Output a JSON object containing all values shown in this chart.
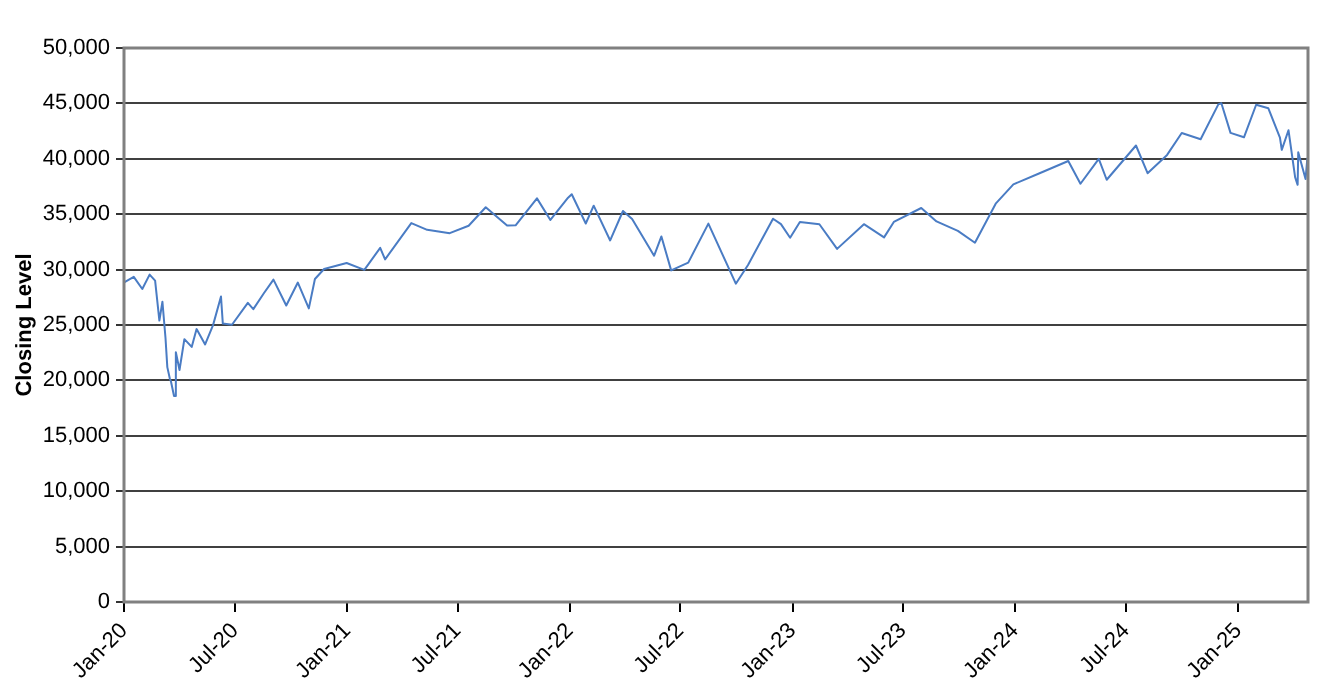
{
  "chart_data": {
    "type": "line",
    "ylabel": "Closing Level",
    "grid": "y",
    "x": [
      "2020-01-02",
      "2020-01-17",
      "2020-01-31",
      "2020-02-12",
      "2020-02-21",
      "2020-02-28",
      "2020-03-04",
      "2020-03-09",
      "2020-03-12",
      "2020-03-16",
      "2020-03-18",
      "2020-03-23",
      "2020-03-26",
      "2020-04-01",
      "2020-04-09",
      "2020-04-21",
      "2020-04-29",
      "2020-05-13",
      "2020-05-26",
      "2020-06-08",
      "2020-06-11",
      "2020-06-26",
      "2020-07-22",
      "2020-07-31",
      "2020-08-17",
      "2020-09-02",
      "2020-09-23",
      "2020-10-12",
      "2020-10-30",
      "2020-11-09",
      "2020-11-24",
      "2020-12-31",
      "2021-01-29",
      "2021-02-24",
      "2021-03-04",
      "2021-04-16",
      "2021-05-12",
      "2021-06-18",
      "2021-07-19",
      "2021-08-16",
      "2021-09-20",
      "2021-10-04",
      "2021-11-08",
      "2021-11-30",
      "2021-12-29",
      "2022-01-04",
      "2022-01-27",
      "2022-02-09",
      "2022-03-08",
      "2022-03-29",
      "2022-04-13",
      "2022-05-19",
      "2022-05-31",
      "2022-06-16",
      "2022-07-14",
      "2022-08-16",
      "2022-09-30",
      "2022-10-20",
      "2022-11-30",
      "2022-12-13",
      "2022-12-28",
      "2023-01-13",
      "2023-02-14",
      "2023-03-15",
      "2023-04-28",
      "2023-05-31",
      "2023-06-16",
      "2023-07-31",
      "2023-08-25",
      "2023-09-29",
      "2023-10-27",
      "2023-11-30",
      "2023-12-29",
      "2024-02-09",
      "2024-03-28",
      "2024-04-17",
      "2024-05-17",
      "2024-05-30",
      "2024-07-17",
      "2024-08-05",
      "2024-09-06",
      "2024-09-30",
      "2024-10-31",
      "2024-11-29",
      "2024-12-04",
      "2024-12-19",
      "2025-01-10",
      "2025-01-30",
      "2025-02-19",
      "2025-03-10",
      "2025-03-13",
      "2025-03-24",
      "2025-04-04",
      "2025-04-08",
      "2025-04-09",
      "2025-04-21",
      "2025-04-24"
    ],
    "series": [
      {
        "color": "#4a7cc4",
        "values": [
          28870,
          29350,
          28250,
          29550,
          29000,
          25400,
          27100,
          23850,
          21200,
          20190,
          19900,
          18590,
          22550,
          20940,
          23720,
          23020,
          24630,
          23250,
          24990,
          27570,
          25130,
          25020,
          27000,
          26430,
          27840,
          29100,
          26760,
          28830,
          26500,
          29150,
          30050,
          30600,
          29980,
          31960,
          30920,
          34200,
          33590,
          33290,
          33960,
          35630,
          33970,
          34000,
          36430,
          34480,
          36490,
          36800,
          34160,
          35770,
          32630,
          35290,
          34560,
          31250,
          32990,
          29930,
          30630,
          34150,
          28730,
          30420,
          34590,
          34100,
          32880,
          34300,
          34090,
          31870,
          34100,
          32910,
          34300,
          35560,
          34350,
          33500,
          32420,
          35950,
          37690,
          38670,
          39800,
          37750,
          40000,
          38110,
          41200,
          38700,
          40350,
          42330,
          41760,
          44910,
          45010,
          42340,
          41940,
          44880,
          44560,
          41910,
          40810,
          42580,
          38310,
          37650,
          40600,
          38170,
          40090
        ]
      }
    ],
    "xlim": [
      "2020-01-01",
      "2025-04-25"
    ],
    "xticks": [
      {
        "value": "2020-01-01",
        "label": "Jan-20"
      },
      {
        "value": "2020-07-01",
        "label": "Jul-20"
      },
      {
        "value": "2021-01-01",
        "label": "Jan-21"
      },
      {
        "value": "2021-07-01",
        "label": "Jul-21"
      },
      {
        "value": "2022-01-01",
        "label": "Jan-22"
      },
      {
        "value": "2022-07-01",
        "label": "Jul-22"
      },
      {
        "value": "2023-01-01",
        "label": "Jan-23"
      },
      {
        "value": "2023-07-01",
        "label": "Jul-23"
      },
      {
        "value": "2024-01-01",
        "label": "Jan-24"
      },
      {
        "value": "2024-07-01",
        "label": "Jul-24"
      },
      {
        "value": "2025-01-01",
        "label": "Jan-25"
      }
    ],
    "ylim": [
      0,
      50000
    ],
    "yticks": [
      0,
      {
        "value": 5000,
        "label": "5,000"
      },
      {
        "value": 10000,
        "label": "10,000"
      },
      {
        "value": 15000,
        "label": "15,000"
      },
      {
        "value": 20000,
        "label": "20,000"
      },
      {
        "value": 25000,
        "label": "25,000"
      },
      {
        "value": 30000,
        "label": "30,000"
      },
      {
        "value": 35000,
        "label": "35,000"
      },
      {
        "value": 40000,
        "label": "40,000"
      },
      {
        "value": 45000,
        "label": "45,000"
      },
      {
        "value": 50000,
        "label": "50,000"
      }
    ]
  }
}
